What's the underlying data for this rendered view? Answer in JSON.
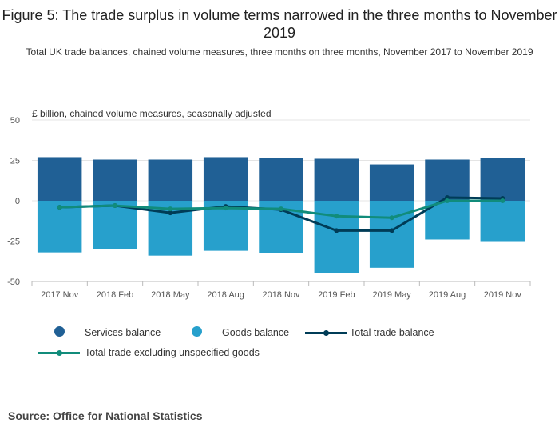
{
  "title": "Figure 5: The trade surplus in volume terms narrowed in the three months to November 2019",
  "subtitle": "Total UK trade balances, chained volume measures, three months on three months, November 2017 to November 2019",
  "source": "Source: Office for National Statistics",
  "colors": {
    "services": "#206095",
    "goods": "#27a0cc",
    "total": "#003c57",
    "excl": "#118c7b",
    "grid": "#e4e4e4",
    "axis": "#bbbbbb"
  },
  "legend": {
    "services": "Services balance",
    "goods": "Goods balance",
    "total": "Total trade balance",
    "excl": "Total trade excluding unspecified goods"
  },
  "chart_data": {
    "type": "bar",
    "unit_label": "£ billion, chained volume measures, seasonally adjusted",
    "categories": [
      "2017 Nov",
      "2018 Feb",
      "2018 May",
      "2018 Aug",
      "2018 Nov",
      "2019 Feb",
      "2019 May",
      "2019 Aug",
      "2019 Nov"
    ],
    "ylim": [
      -50,
      50
    ],
    "yticks": [
      50,
      25,
      0,
      -25,
      -50
    ],
    "series": [
      {
        "name": "Services balance",
        "kind": "bar",
        "values": [
          27,
          25.5,
          25.5,
          27,
          26.5,
          26,
          22.5,
          25.5,
          26.5
        ]
      },
      {
        "name": "Goods balance",
        "kind": "bar",
        "values": [
          -32,
          -30,
          -34,
          -31,
          -32.5,
          -45,
          -41.5,
          -24,
          -25.5
        ]
      },
      {
        "name": "Total trade balance",
        "kind": "line",
        "values": [
          -4,
          -3,
          -7.5,
          -3.5,
          -5.5,
          -18.5,
          -18.5,
          2,
          1.5
        ]
      },
      {
        "name": "Total trade excluding unspecified goods",
        "kind": "line",
        "values": [
          -4,
          -3,
          -5,
          -4.5,
          -5,
          -9.5,
          -10.5,
          0,
          0
        ]
      }
    ]
  }
}
